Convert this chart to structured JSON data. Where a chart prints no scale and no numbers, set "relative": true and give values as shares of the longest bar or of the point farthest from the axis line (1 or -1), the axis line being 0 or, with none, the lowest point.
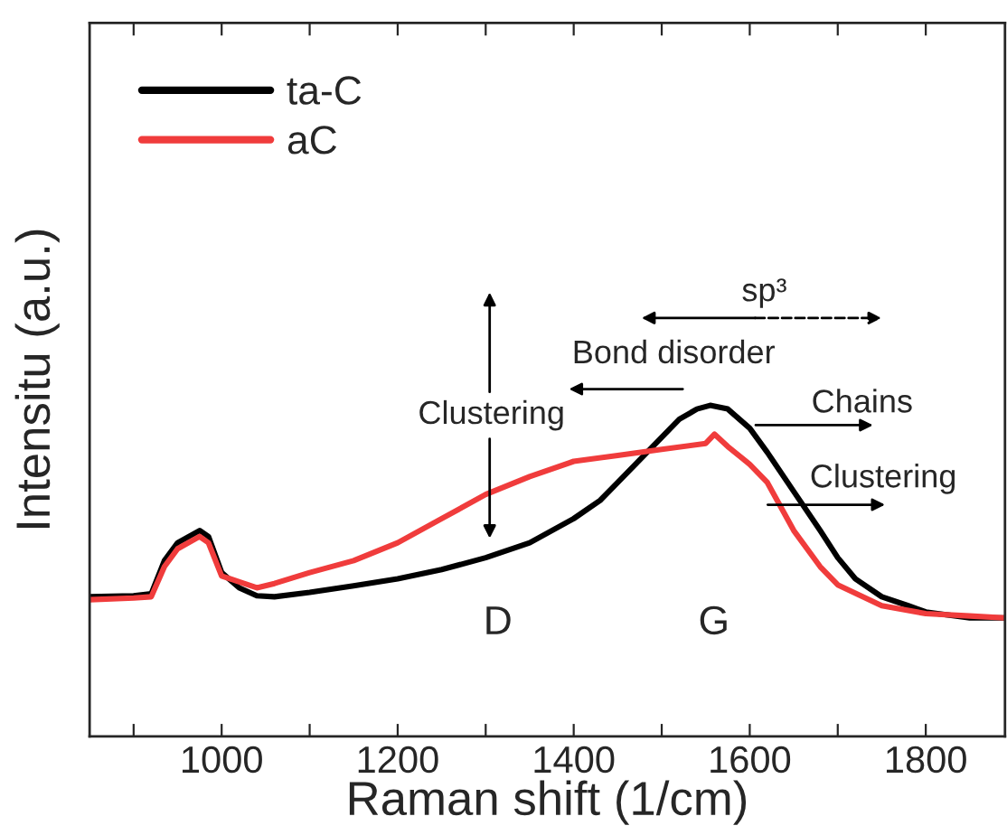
{
  "chart_data": {
    "type": "line",
    "relative": true,
    "xlabel": "Raman shift (1/cm)",
    "ylabel": "Intensitu (a.u.)",
    "xlim": [
      850,
      1890
    ],
    "xticks": [
      {
        "value": 900,
        "label": null
      },
      1000,
      {
        "value": 1100,
        "label": null
      },
      1200,
      {
        "value": 1300,
        "label": null
      },
      1400,
      {
        "value": 1500,
        "label": null
      },
      1600,
      {
        "value": 1700,
        "label": null
      },
      1800
    ],
    "legend": "top left",
    "grid": false,
    "line_style": "solid",
    "marker": "none",
    "series": [
      {
        "name": "ta-C",
        "color": "#000000",
        "x": [
          850,
          900,
          920,
          935,
          950,
          975,
          985,
          1000,
          1020,
          1040,
          1060,
          1100,
          1150,
          1200,
          1250,
          1300,
          1350,
          1400,
          1430,
          1450,
          1480,
          1500,
          1520,
          1540,
          1555,
          1575,
          1600,
          1620,
          1650,
          1680,
          1700,
          1720,
          1750,
          1780,
          1800,
          1850,
          1890
        ],
        "values": [
          0.422,
          0.425,
          0.431,
          0.531,
          0.585,
          0.622,
          0.604,
          0.495,
          0.449,
          0.425,
          0.422,
          0.435,
          0.455,
          0.476,
          0.504,
          0.54,
          0.585,
          0.658,
          0.713,
          0.767,
          0.849,
          0.904,
          0.958,
          0.989,
          1.0,
          0.989,
          0.931,
          0.858,
          0.74,
          0.622,
          0.54,
          0.476,
          0.422,
          0.395,
          0.376,
          0.358,
          0.358
        ]
      },
      {
        "name": "aC",
        "color": "#f03c3c",
        "x": [
          850,
          900,
          920,
          935,
          950,
          975,
          985,
          1000,
          1020,
          1040,
          1060,
          1100,
          1150,
          1200,
          1250,
          1300,
          1350,
          1400,
          1450,
          1500,
          1550,
          1560,
          1575,
          1600,
          1620,
          1650,
          1680,
          1700,
          1750,
          1800,
          1850,
          1890
        ],
        "values": [
          0.413,
          0.418,
          0.422,
          0.513,
          0.567,
          0.604,
          0.585,
          0.485,
          0.467,
          0.449,
          0.462,
          0.495,
          0.531,
          0.585,
          0.658,
          0.731,
          0.785,
          0.831,
          0.849,
          0.867,
          0.885,
          0.913,
          0.876,
          0.822,
          0.767,
          0.622,
          0.513,
          0.458,
          0.395,
          0.371,
          0.364,
          0.358
        ]
      }
    ],
    "annotations": [
      "sp³",
      "Bond disorder",
      "Clustering",
      "Chains",
      "Clustering",
      "D",
      "G"
    ]
  }
}
